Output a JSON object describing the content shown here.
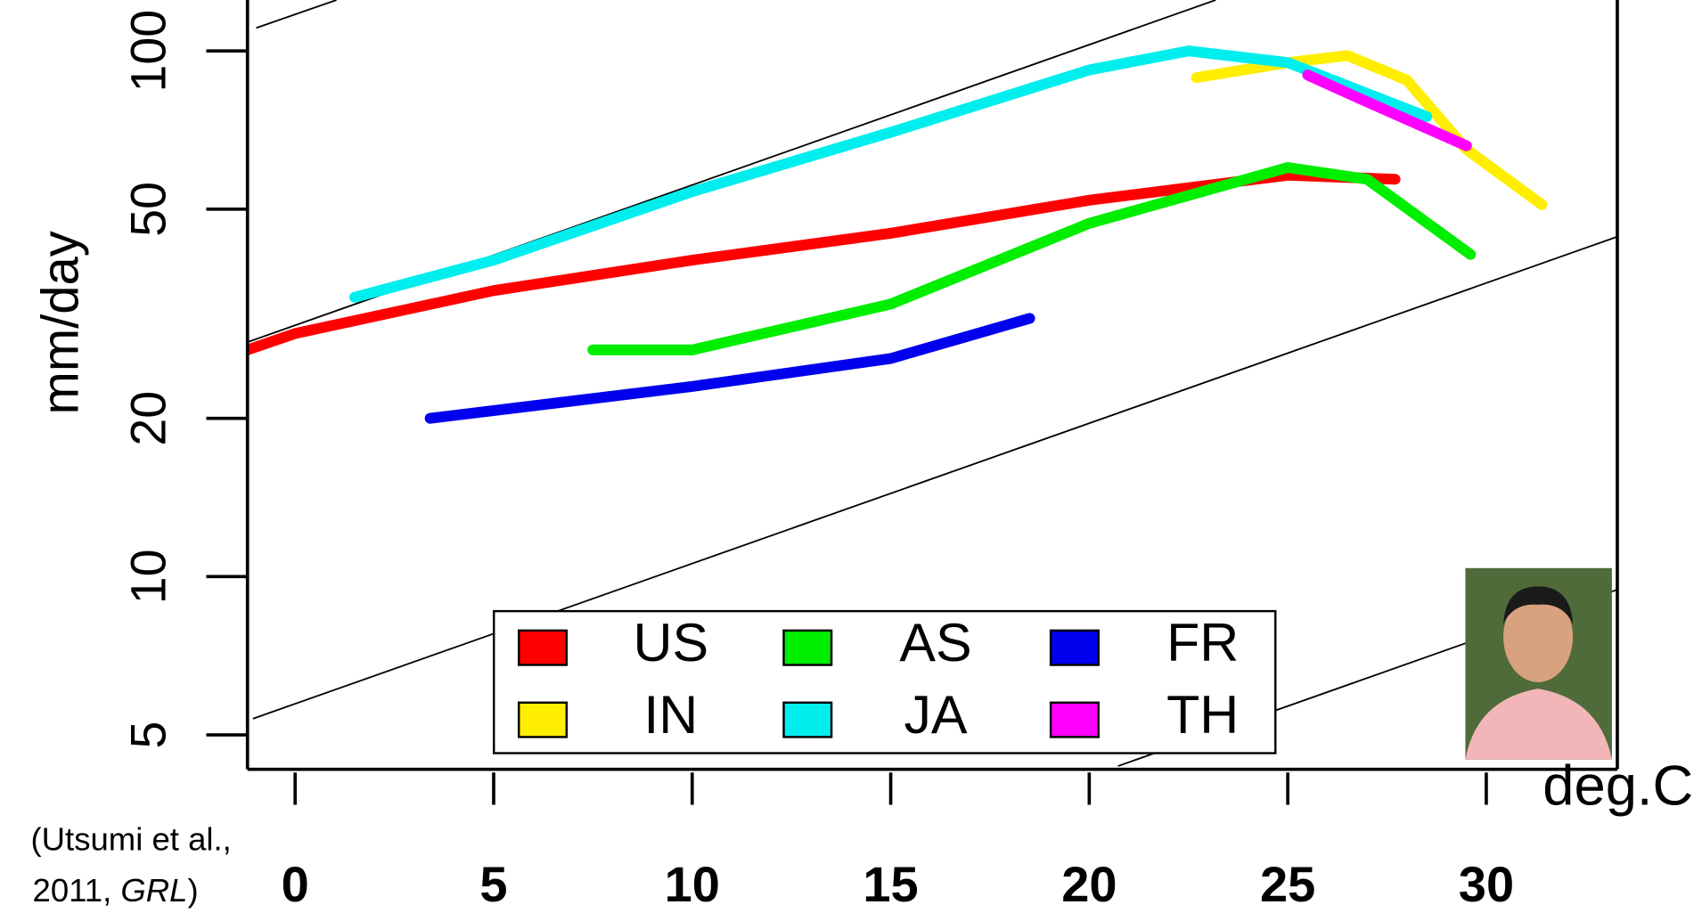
{
  "chart_data": {
    "type": "line",
    "ylabel": "mm/day",
    "xlabel": "deg.C",
    "annotation": [
      "(Utsumi et al.,",
      "2011, ",
      "GRL",
      ")"
    ],
    "xlim": [
      -1.2,
      33.3
    ],
    "xticks": [
      0,
      5,
      10,
      15,
      20,
      25,
      30
    ],
    "ylim": [
      4.3,
      125
    ],
    "yticks": [
      5,
      10,
      20,
      50,
      100
    ],
    "ylog": true,
    "series": [
      {
        "name": "US",
        "color": "#ff0000",
        "x": [
          -1.2,
          0,
          5,
          10,
          15,
          20,
          25,
          27.7
        ],
        "values": [
          27,
          29,
          35,
          40,
          45,
          52,
          58,
          57
        ]
      },
      {
        "name": "AS",
        "color": "#00ee00",
        "x": [
          7.5,
          10,
          15,
          20,
          25,
          27,
          29.6
        ],
        "values": [
          27,
          27,
          33,
          47,
          60,
          57,
          41
        ]
      },
      {
        "name": "FR",
        "color": "#0000ee",
        "x": [
          3.4,
          10,
          15,
          18.5
        ],
        "values": [
          20,
          23,
          26,
          31
        ]
      },
      {
        "name": "IN",
        "color": "#ffee00",
        "x": [
          22.7,
          25,
          26.5,
          28,
          29.5,
          31.4
        ],
        "values": [
          89,
          95,
          98,
          88,
          65,
          51
        ]
      },
      {
        "name": "JA",
        "color": "#00eeee",
        "x": [
          1.5,
          5,
          10,
          15,
          20,
          22.5,
          25,
          28.5
        ],
        "values": [
          34,
          40,
          54,
          70,
          92,
          100,
          95,
          75
        ]
      },
      {
        "name": "TH",
        "color": "#ff00ff",
        "x": [
          25.5,
          27,
          29.5
        ],
        "values": [
          90,
          80,
          66
        ]
      }
    ]
  }
}
